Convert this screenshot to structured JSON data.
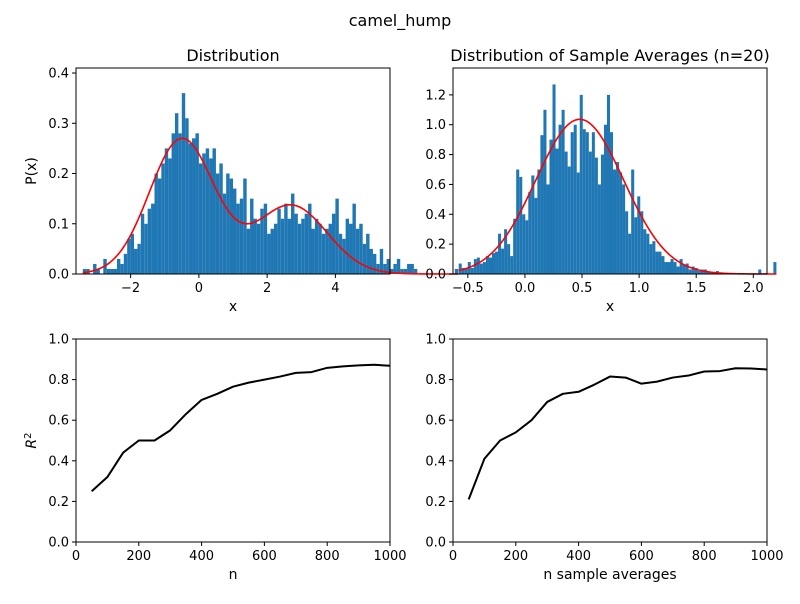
{
  "figure": {
    "suptitle": "camel_hump"
  },
  "chart_data": [
    {
      "type": "bar",
      "title": "Distribution",
      "xlabel": "x",
      "ylabel": "P(x)",
      "xlim": [
        -3.6,
        5.6
      ],
      "ylim": [
        0,
        0.41
      ],
      "xticks": [
        -2,
        0,
        2,
        4
      ],
      "yticks": [
        0.0,
        0.1,
        0.2,
        0.3,
        0.4
      ],
      "bin_start": -3.4,
      "bin_width": 0.1,
      "values": [
        0.01,
        0.01,
        0.0,
        0.02,
        0.01,
        0.0,
        0.03,
        0.01,
        0.01,
        0.01,
        0.03,
        0.02,
        0.04,
        0.07,
        0.08,
        0.05,
        0.06,
        0.12,
        0.1,
        0.13,
        0.14,
        0.2,
        0.19,
        0.22,
        0.25,
        0.23,
        0.28,
        0.32,
        0.28,
        0.36,
        0.31,
        0.26,
        0.27,
        0.28,
        0.22,
        0.24,
        0.25,
        0.23,
        0.25,
        0.2,
        0.22,
        0.16,
        0.2,
        0.19,
        0.17,
        0.14,
        0.15,
        0.19,
        0.09,
        0.15,
        0.11,
        0.1,
        0.13,
        0.14,
        0.08,
        0.09,
        0.1,
        0.13,
        0.11,
        0.14,
        0.11,
        0.16,
        0.12,
        0.1,
        0.11,
        0.12,
        0.14,
        0.09,
        0.11,
        0.1,
        0.08,
        0.09,
        0.1,
        0.12,
        0.15,
        0.08,
        0.07,
        0.11,
        0.1,
        0.14,
        0.09,
        0.1,
        0.06,
        0.08,
        0.05,
        0.04,
        0.02,
        0.05,
        0.02,
        0.03,
        0.01,
        0.02,
        0.03,
        0.01,
        0.01,
        0.02,
        0.02,
        0.01,
        0.0,
        0.0,
        0.0,
        0.0,
        0.0,
        0.0,
        0.0,
        0.0,
        0.0,
        0.0,
        0.0,
        0.01
      ],
      "curve": {
        "kind": "gaussian_mixture",
        "components": [
          {
            "mean": -0.5,
            "sd": 0.95,
            "weight": 0.64
          },
          {
            "mean": 2.7,
            "sd": 1.05,
            "weight": 0.36
          }
        ],
        "color": "#ff0000"
      },
      "bar_color": "#1f77b4"
    },
    {
      "type": "bar",
      "title": "Distribution of Sample Averages (n=20)",
      "xlabel": "x",
      "ylabel": "",
      "xlim": [
        -0.63,
        2.12
      ],
      "ylim": [
        0,
        1.38
      ],
      "xticks": [
        -0.5,
        0.0,
        0.5,
        1.0,
        1.5,
        2.0
      ],
      "yticks": [
        0.0,
        0.2,
        0.4,
        0.6,
        0.8,
        1.0,
        1.2
      ],
      "bin_start": -0.58,
      "bin_width": 0.0265,
      "values": [
        0.07,
        0.04,
        0.04,
        0.08,
        0.04,
        0.1,
        0.11,
        0.07,
        0.08,
        0.12,
        0.11,
        0.14,
        0.15,
        0.27,
        0.17,
        0.3,
        0.2,
        0.12,
        0.37,
        0.7,
        0.65,
        0.4,
        0.36,
        0.55,
        0.66,
        0.51,
        0.7,
        0.93,
        1.1,
        0.6,
        0.9,
        1.27,
        0.84,
        1.0,
        1.1,
        0.82,
        0.72,
        0.95,
        1.0,
        0.68,
        1.2,
        0.97,
        0.95,
        0.82,
        0.95,
        0.78,
        0.6,
        0.8,
        1.0,
        1.2,
        0.95,
        0.7,
        0.75,
        0.68,
        0.6,
        0.42,
        0.27,
        0.7,
        0.38,
        0.52,
        0.42,
        0.3,
        0.27,
        0.2,
        0.22,
        0.15,
        0.15,
        0.12,
        0.08,
        0.08,
        0.1,
        0.08,
        0.05,
        0.1,
        0.06,
        0.07,
        0.03,
        0.05,
        0.04,
        0.02,
        0.03,
        0.03,
        0.01,
        0.01,
        0.01,
        0.02,
        0.01,
        0.01,
        0.0,
        0.0,
        0.0,
        0.0,
        0.0,
        0.0,
        0.0,
        0.0,
        0.0,
        0.0,
        0.0,
        0.03,
        0.0,
        0.0,
        0.0,
        0.0,
        0.08
      ],
      "curve": {
        "kind": "gaussian_mixture",
        "components": [
          {
            "mean": 0.48,
            "sd": 0.385,
            "weight": 1.0
          }
        ],
        "color": "#ff0000"
      },
      "bar_color": "#1f77b4"
    },
    {
      "type": "line",
      "title": "",
      "xlabel": "n",
      "ylabel": "R^2",
      "xlim": [
        0,
        1000
      ],
      "ylim": [
        0.0,
        1.0
      ],
      "xticks": [
        0,
        200,
        400,
        600,
        800,
        1000
      ],
      "yticks": [
        0.0,
        0.2,
        0.4,
        0.6,
        0.8,
        1.0
      ],
      "x": [
        50,
        100,
        150,
        200,
        250,
        300,
        350,
        400,
        450,
        500,
        550,
        600,
        650,
        700,
        750,
        800,
        850,
        900,
        950,
        1000
      ],
      "y": [
        0.25,
        0.32,
        0.44,
        0.5,
        0.5,
        0.55,
        0.63,
        0.7,
        0.73,
        0.765,
        0.785,
        0.8,
        0.815,
        0.833,
        0.837,
        0.858,
        0.865,
        0.87,
        0.873,
        0.868
      ],
      "color": "#000000"
    },
    {
      "type": "line",
      "title": "",
      "xlabel": "n sample averages",
      "ylabel": "",
      "xlim": [
        0,
        1000
      ],
      "ylim": [
        0.0,
        1.0
      ],
      "xticks": [
        0,
        200,
        400,
        600,
        800,
        1000
      ],
      "yticks": [
        0.0,
        0.2,
        0.4,
        0.6,
        0.8,
        1.0
      ],
      "x": [
        50,
        100,
        150,
        200,
        250,
        300,
        350,
        400,
        450,
        500,
        550,
        600,
        650,
        700,
        750,
        800,
        850,
        900,
        950,
        1000
      ],
      "y": [
        0.21,
        0.41,
        0.5,
        0.54,
        0.6,
        0.69,
        0.73,
        0.74,
        0.775,
        0.815,
        0.81,
        0.78,
        0.79,
        0.81,
        0.82,
        0.84,
        0.842,
        0.856,
        0.855,
        0.85
      ],
      "color": "#000000"
    }
  ]
}
